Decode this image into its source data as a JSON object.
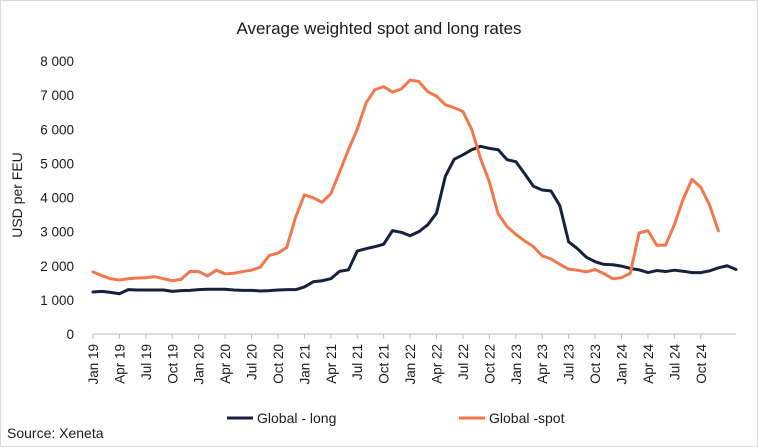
{
  "chart_data": {
    "type": "line",
    "title": "Average weighted spot and long rates",
    "ylabel": "USD per FEU",
    "xlabel": "",
    "source": "Source: Xeneta",
    "ylim": [
      0,
      8000
    ],
    "yticks": [
      0,
      1000,
      2000,
      3000,
      4000,
      5000,
      6000,
      7000,
      8000
    ],
    "ytick_labels": [
      "0",
      "1 000",
      "2 000",
      "3 000",
      "4 000",
      "5 000",
      "6 000",
      "7 000",
      "8 000"
    ],
    "xtick_labels": [
      "Jan 19",
      "Apr 19",
      "Jul 19",
      "Oct 19",
      "Jan 20",
      "Apr 20",
      "Jul 20",
      "Oct 20",
      "Jan 21",
      "Apr 21",
      "Jul 21",
      "Oct 21",
      "Jan 22",
      "Apr 22",
      "Jul 22",
      "Oct 22",
      "Jan 23",
      "Apr 23",
      "Jul 23",
      "Oct 23",
      "Jan 24",
      "Apr 24",
      "Jul 24",
      "Oct 24"
    ],
    "x_start": "2019-01",
    "grid": false,
    "legend_position": "bottom",
    "series": [
      {
        "name": "Global - long",
        "color": "#16213e",
        "values": [
          1230,
          1250,
          1220,
          1180,
          1300,
          1290,
          1290,
          1290,
          1290,
          1250,
          1270,
          1280,
          1300,
          1310,
          1310,
          1310,
          1290,
          1280,
          1280,
          1260,
          1270,
          1290,
          1300,
          1300,
          1380,
          1530,
          1560,
          1620,
          1840,
          1880,
          2430,
          2500,
          2560,
          2630,
          3030,
          2980,
          2880,
          3000,
          3200,
          3540,
          4620,
          5120,
          5250,
          5400,
          5500,
          5440,
          5400,
          5110,
          5050,
          4700,
          4330,
          4220,
          4190,
          3760,
          2700,
          2500,
          2250,
          2120,
          2040,
          2030,
          1990,
          1920,
          1880,
          1800,
          1860,
          1830,
          1870,
          1840,
          1800,
          1800,
          1850,
          1940,
          2000,
          1890
        ]
      },
      {
        "name": "Global -spot",
        "color": "#f2784b",
        "values": [
          1820,
          1710,
          1620,
          1580,
          1620,
          1640,
          1650,
          1680,
          1620,
          1560,
          1600,
          1830,
          1830,
          1700,
          1870,
          1760,
          1780,
          1830,
          1870,
          1960,
          2300,
          2370,
          2540,
          3420,
          4080,
          3990,
          3860,
          4110,
          4750,
          5400,
          6000,
          6770,
          7160,
          7250,
          7090,
          7180,
          7440,
          7400,
          7100,
          6970,
          6720,
          6630,
          6520,
          5990,
          5140,
          4460,
          3520,
          3150,
          2920,
          2730,
          2560,
          2290,
          2200,
          2040,
          1900,
          1870,
          1820,
          1890,
          1770,
          1620,
          1650,
          1780,
          2960,
          3030,
          2600,
          2600,
          3200,
          3950,
          4530,
          4300,
          3780,
          3020
        ]
      }
    ]
  }
}
